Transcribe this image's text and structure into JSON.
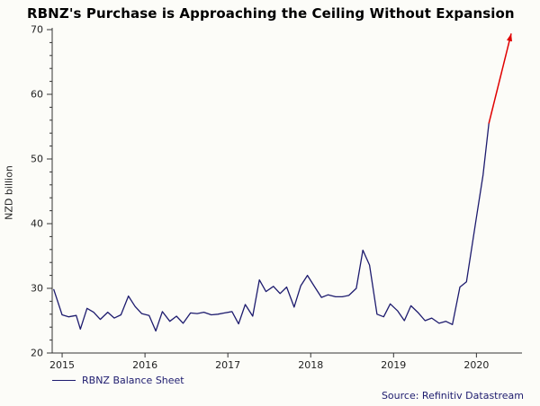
{
  "chart_data": {
    "type": "line",
    "title": "RBNZ's Purchase is Approaching the Ceiling Without Expansion",
    "ylabel": "NZD billion",
    "xlabel": "",
    "ylim": [
      20,
      70
    ],
    "yticks": [
      20,
      30,
      40,
      50,
      60,
      70
    ],
    "xlim": [
      2014.88,
      2020.55
    ],
    "xticks": [
      2015,
      2016,
      2017,
      2018,
      2019,
      2020
    ],
    "grid": false,
    "legend_position": "bottom-left",
    "legend": [
      {
        "label": "RBNZ Balance Sheet",
        "color": "#1d1b6e"
      }
    ],
    "source": "Source: Refinitiv Datastream",
    "axis_color": "#333333",
    "series": [
      {
        "name": "RBNZ Balance Sheet",
        "color": "#1d1b6e",
        "points": [
          [
            2014.9,
            29.8
          ],
          [
            2015.0,
            25.9
          ],
          [
            2015.08,
            25.6
          ],
          [
            2015.17,
            25.8
          ],
          [
            2015.22,
            23.7
          ],
          [
            2015.3,
            26.9
          ],
          [
            2015.38,
            26.3
          ],
          [
            2015.46,
            25.2
          ],
          [
            2015.55,
            26.3
          ],
          [
            2015.63,
            25.4
          ],
          [
            2015.71,
            25.9
          ],
          [
            2015.8,
            28.8
          ],
          [
            2015.88,
            27.2
          ],
          [
            2015.96,
            26.1
          ],
          [
            2016.05,
            25.8
          ],
          [
            2016.13,
            23.4
          ],
          [
            2016.21,
            26.4
          ],
          [
            2016.3,
            24.9
          ],
          [
            2016.38,
            25.7
          ],
          [
            2016.46,
            24.6
          ],
          [
            2016.55,
            26.2
          ],
          [
            2016.63,
            26.1
          ],
          [
            2016.71,
            26.3
          ],
          [
            2016.8,
            25.9
          ],
          [
            2016.88,
            26.0
          ],
          [
            2016.96,
            26.2
          ],
          [
            2017.05,
            26.4
          ],
          [
            2017.13,
            24.5
          ],
          [
            2017.21,
            27.5
          ],
          [
            2017.3,
            25.7
          ],
          [
            2017.38,
            31.3
          ],
          [
            2017.46,
            29.5
          ],
          [
            2017.55,
            30.3
          ],
          [
            2017.63,
            29.2
          ],
          [
            2017.71,
            30.2
          ],
          [
            2017.8,
            27.1
          ],
          [
            2017.88,
            30.4
          ],
          [
            2017.96,
            32.0
          ],
          [
            2018.05,
            30.2
          ],
          [
            2018.13,
            28.6
          ],
          [
            2018.21,
            29.0
          ],
          [
            2018.3,
            28.7
          ],
          [
            2018.38,
            28.7
          ],
          [
            2018.46,
            28.9
          ],
          [
            2018.55,
            30.0
          ],
          [
            2018.63,
            35.9
          ],
          [
            2018.71,
            33.6
          ],
          [
            2018.8,
            26.0
          ],
          [
            2018.88,
            25.6
          ],
          [
            2018.96,
            27.6
          ],
          [
            2019.05,
            26.5
          ],
          [
            2019.13,
            25.0
          ],
          [
            2019.21,
            27.3
          ],
          [
            2019.3,
            26.2
          ],
          [
            2019.38,
            25.0
          ],
          [
            2019.46,
            25.4
          ],
          [
            2019.55,
            24.6
          ],
          [
            2019.63,
            24.9
          ],
          [
            2019.71,
            24.4
          ],
          [
            2019.8,
            30.2
          ],
          [
            2019.88,
            31.0
          ],
          [
            2020.0,
            41.0
          ],
          [
            2020.08,
            47.5
          ],
          [
            2020.15,
            55.5
          ]
        ]
      }
    ],
    "annotation_arrow": {
      "color": "#e00000",
      "from": {
        "x": 2020.15,
        "y": 55.5
      },
      "to": {
        "x": 2020.42,
        "y": 69.4
      }
    }
  }
}
